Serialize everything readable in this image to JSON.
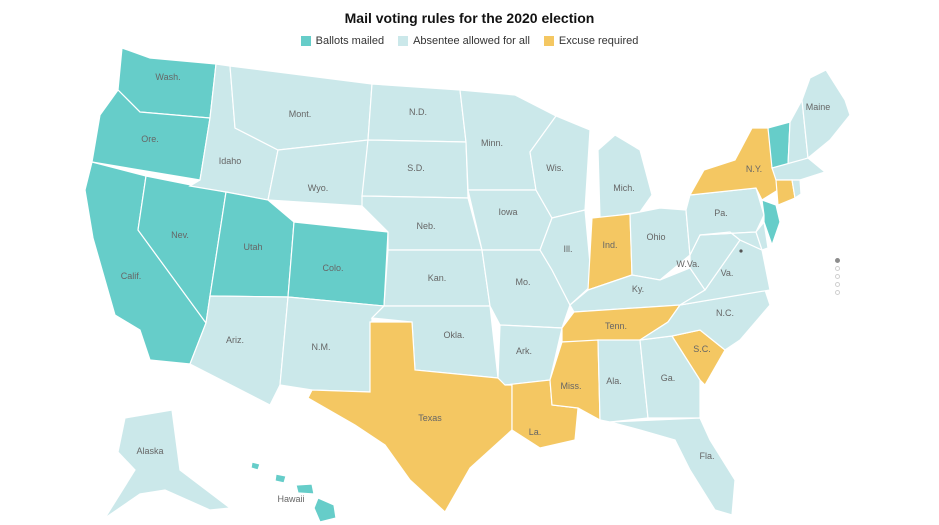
{
  "title": "Mail voting rules for the 2020 election",
  "legend": {
    "ballots_mailed": "Ballots mailed",
    "absentee": "Absentee allowed for all",
    "excuse": "Excuse required"
  },
  "colors": {
    "ballots_mailed": "#66cdc9",
    "absentee": "#cbe8ea",
    "excuse": "#f4c762"
  },
  "states": {
    "wash": "Wash.",
    "ore": "Ore.",
    "calif": "Calif.",
    "nev": "Nev.",
    "idaho": "Idaho",
    "mont": "Mont.",
    "wyo": "Wyo.",
    "utah": "Utah",
    "colo": "Colo.",
    "ariz": "Ariz.",
    "nm": "N.M.",
    "nd": "N.D.",
    "sd": "S.D.",
    "neb": "Neb.",
    "kan": "Kan.",
    "okla": "Okla.",
    "texas": "Texas",
    "minn": "Minn.",
    "iowa": "Iowa",
    "mo": "Mo.",
    "ark": "Ark.",
    "la": "La.",
    "wis": "Wis.",
    "ill": "Ill.",
    "mich": "Mich.",
    "ind": "Ind.",
    "ohio": "Ohio",
    "ky": "Ky.",
    "tenn": "Tenn.",
    "miss": "Miss.",
    "ala": "Ala.",
    "ga": "Ga.",
    "fla": "Fla.",
    "sc": "S.C.",
    "nc": "N.C.",
    "va": "Va.",
    "wva": "W.Va.",
    "pa": "Pa.",
    "ny": "N.Y.",
    "maine": "Maine",
    "alaska": "Alaska",
    "hawaii": "Hawaii"
  },
  "state_status": {
    "wash": "ballots_mailed",
    "ore": "ballots_mailed",
    "calif": "ballots_mailed",
    "nev": "ballots_mailed",
    "utah": "ballots_mailed",
    "colo": "ballots_mailed",
    "vt": "ballots_mailed",
    "nj": "ballots_mailed",
    "hawaii": "ballots_mailed",
    "texas": "excuse",
    "la": "excuse",
    "miss": "excuse",
    "tenn": "excuse",
    "ind": "excuse",
    "sc": "excuse",
    "ny": "excuse",
    "ct": "excuse",
    "idaho": "absentee",
    "mont": "absentee",
    "wyo": "absentee",
    "ariz": "absentee",
    "nm": "absentee",
    "nd": "absentee",
    "sd": "absentee",
    "neb": "absentee",
    "kan": "absentee",
    "okla": "absentee",
    "minn": "absentee",
    "iowa": "absentee",
    "mo": "absentee",
    "ark": "absentee",
    "wis": "absentee",
    "ill": "absentee",
    "mich": "absentee",
    "ohio": "absentee",
    "ky": "absentee",
    "ala": "absentee",
    "ga": "absentee",
    "fla": "absentee",
    "nc": "absentee",
    "va": "absentee",
    "wva": "absentee",
    "pa": "absentee",
    "md": "absentee",
    "de": "absentee",
    "maine": "absentee",
    "nh": "absentee",
    "ma": "absentee",
    "ri": "absentee",
    "alaska": "absentee"
  }
}
